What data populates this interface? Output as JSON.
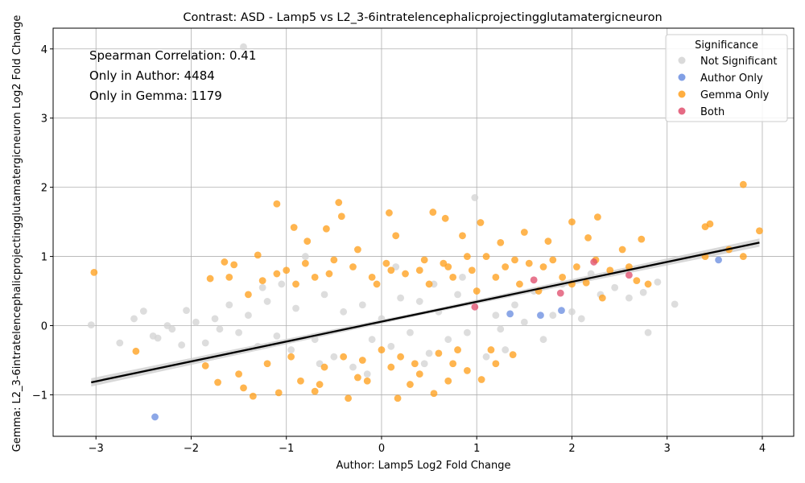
{
  "chart_data": {
    "type": "scatter",
    "title": "Contrast: ASD - Lamp5 vs L2_3-6intratelencephalicprojectingglutamatergicneuron",
    "xlabel": "Author: Lamp5 Log2 Fold Change",
    "ylabel": "Gemma: L2_3-6intratelencephalicprojectingglutamatergicneuron Log2 Fold Change",
    "xlim": [
      -3.45,
      4.33
    ],
    "ylim": [
      -1.6,
      4.3
    ],
    "x_ticks": [
      -3,
      -2,
      -1,
      0,
      1,
      2,
      3,
      4
    ],
    "y_ticks": [
      -1,
      0,
      1,
      2,
      3,
      4
    ],
    "x_tick_labels": [
      "−3",
      "−2",
      "−1",
      "0",
      "1",
      "2",
      "3",
      "4"
    ],
    "y_tick_labels": [
      "−1",
      "0",
      "1",
      "2",
      "3",
      "4"
    ],
    "grid": true,
    "legend": {
      "title": "Significance",
      "placement": "top-right",
      "entries": [
        "Not Significant",
        "Author Only",
        "Gemma Only",
        "Both"
      ]
    },
    "annotations": [
      "Spearman Correlation: 0.41",
      "Only in Author: 4484",
      "Only in Gemma: 1179"
    ],
    "colors": {
      "not_significant": "#d3d3d3",
      "author_only": "#6b8ee0",
      "gemma_only": "#ffa01e",
      "both": "#e0506e",
      "fit_line": "#000000",
      "fit_band": "#c8c8c8"
    },
    "fit_line": {
      "x": [
        -3.05,
        3.97
      ],
      "y": [
        -0.82,
        1.2
      ]
    },
    "series": [
      {
        "name": "Not Significant",
        "points": [
          [
            -3.05,
            0.01
          ],
          [
            -2.75,
            -0.25
          ],
          [
            -2.6,
            0.1
          ],
          [
            -2.5,
            0.21
          ],
          [
            -2.35,
            -0.18
          ],
          [
            -2.2,
            -0.05
          ],
          [
            -2.1,
            -0.28
          ],
          [
            -2.05,
            0.22
          ],
          [
            -1.95,
            0.05
          ],
          [
            -1.85,
            -0.25
          ],
          [
            -1.75,
            0.1
          ],
          [
            -1.6,
            0.3
          ],
          [
            -1.5,
            -0.1
          ],
          [
            -1.45,
            4.03
          ],
          [
            -1.4,
            0.15
          ],
          [
            -1.3,
            -0.3
          ],
          [
            -1.2,
            0.35
          ],
          [
            -1.1,
            -0.15
          ],
          [
            -1.05,
            0.6
          ],
          [
            -0.95,
            -0.35
          ],
          [
            -0.9,
            0.25
          ],
          [
            -0.8,
            1.0
          ],
          [
            -0.7,
            -0.2
          ],
          [
            -0.6,
            0.45
          ],
          [
            -0.5,
            -0.45
          ],
          [
            -0.4,
            0.2
          ],
          [
            -0.3,
            -0.6
          ],
          [
            -0.2,
            0.3
          ],
          [
            -0.1,
            -0.2
          ],
          [
            0.0,
            0.1
          ],
          [
            0.1,
            -0.3
          ],
          [
            0.2,
            0.4
          ],
          [
            0.3,
            -0.1
          ],
          [
            0.4,
            0.35
          ],
          [
            0.5,
            -0.4
          ],
          [
            0.6,
            0.2
          ],
          [
            0.7,
            -0.2
          ],
          [
            0.8,
            0.45
          ],
          [
            0.9,
            -0.1
          ],
          [
            0.98,
            1.85
          ],
          [
            1.1,
            -0.45
          ],
          [
            1.2,
            0.15
          ],
          [
            1.3,
            -0.35
          ],
          [
            1.4,
            0.3
          ],
          [
            1.5,
            0.05
          ],
          [
            1.6,
            0.5
          ],
          [
            1.7,
            -0.2
          ],
          [
            1.8,
            0.15
          ],
          [
            1.9,
            0.6
          ],
          [
            2.0,
            0.2
          ],
          [
            2.1,
            0.1
          ],
          [
            2.2,
            0.75
          ],
          [
            2.3,
            0.45
          ],
          [
            2.45,
            0.55
          ],
          [
            2.6,
            0.4
          ],
          [
            2.75,
            0.48
          ],
          [
            2.9,
            0.63
          ],
          [
            3.08,
            0.31
          ],
          [
            2.8,
            -0.1
          ],
          [
            -2.4,
            -0.15
          ],
          [
            -2.25,
            0.0
          ],
          [
            -1.7,
            -0.05
          ],
          [
            0.45,
            -0.55
          ],
          [
            0.15,
            0.85
          ],
          [
            -0.15,
            -0.7
          ],
          [
            0.55,
            0.6
          ],
          [
            -0.65,
            -0.55
          ],
          [
            0.85,
            0.7
          ],
          [
            1.25,
            -0.05
          ],
          [
            -1.25,
            0.55
          ]
        ]
      },
      {
        "name": "Author Only",
        "points": [
          [
            -2.38,
            -1.32
          ],
          [
            3.54,
            0.95
          ],
          [
            1.35,
            0.17
          ],
          [
            1.67,
            0.15
          ],
          [
            1.89,
            0.22
          ]
        ]
      },
      {
        "name": "Gemma Only",
        "points": [
          [
            -3.02,
            0.77
          ],
          [
            -2.58,
            -0.37
          ],
          [
            -1.85,
            -0.58
          ],
          [
            -1.72,
            -0.82
          ],
          [
            -1.65,
            0.92
          ],
          [
            -1.55,
            0.88
          ],
          [
            -1.45,
            -0.9
          ],
          [
            -1.35,
            -1.02
          ],
          [
            -1.3,
            1.02
          ],
          [
            -1.1,
            1.76
          ],
          [
            -1.08,
            -0.97
          ],
          [
            -0.92,
            1.42
          ],
          [
            -0.85,
            -0.8
          ],
          [
            -0.78,
            1.22
          ],
          [
            -0.7,
            -0.95
          ],
          [
            -0.58,
            1.4
          ],
          [
            -0.45,
            1.78
          ],
          [
            -0.42,
            1.58
          ],
          [
            -0.35,
            -1.05
          ],
          [
            -0.25,
            1.1
          ],
          [
            -0.15,
            -0.8
          ],
          [
            0.08,
            1.63
          ],
          [
            0.15,
            1.3
          ],
          [
            0.17,
            -1.05
          ],
          [
            0.3,
            -0.85
          ],
          [
            0.54,
            1.64
          ],
          [
            0.55,
            -0.98
          ],
          [
            0.67,
            1.55
          ],
          [
            0.7,
            -0.8
          ],
          [
            0.85,
            1.3
          ],
          [
            0.9,
            -0.65
          ],
          [
            1.04,
            1.49
          ],
          [
            1.05,
            -0.78
          ],
          [
            1.2,
            -0.55
          ],
          [
            1.25,
            1.2
          ],
          [
            1.38,
            -0.42
          ],
          [
            1.5,
            1.35
          ],
          [
            1.75,
            1.22
          ],
          [
            2.0,
            1.5
          ],
          [
            2.17,
            1.27
          ],
          [
            2.27,
            1.57
          ],
          [
            2.32,
            0.4
          ],
          [
            2.53,
            1.1
          ],
          [
            2.68,
            0.65
          ],
          [
            2.73,
            1.25
          ],
          [
            2.8,
            0.6
          ],
          [
            3.4,
            1.43
          ],
          [
            3.45,
            1.47
          ],
          [
            3.4,
            1.0
          ],
          [
            3.8,
            2.04
          ],
          [
            3.8,
            1.0
          ],
          [
            3.65,
            1.1
          ],
          [
            3.97,
            1.37
          ],
          [
            -1.8,
            0.68
          ],
          [
            -1.6,
            0.7
          ],
          [
            -1.4,
            0.45
          ],
          [
            -1.2,
            -0.55
          ],
          [
            -1.0,
            0.8
          ],
          [
            -0.95,
            -0.45
          ],
          [
            -0.8,
            0.9
          ],
          [
            -0.6,
            -0.6
          ],
          [
            -0.55,
            0.75
          ],
          [
            -0.4,
            -0.45
          ],
          [
            -0.3,
            0.85
          ],
          [
            -0.2,
            -0.5
          ],
          [
            -0.1,
            0.7
          ],
          [
            0.0,
            -0.35
          ],
          [
            0.05,
            0.9
          ],
          [
            0.2,
            -0.45
          ],
          [
            0.25,
            0.75
          ],
          [
            0.35,
            -0.55
          ],
          [
            0.4,
            0.8
          ],
          [
            0.5,
            0.6
          ],
          [
            0.6,
            -0.4
          ],
          [
            0.65,
            0.9
          ],
          [
            0.75,
            0.7
          ],
          [
            0.8,
            -0.35
          ],
          [
            0.95,
            0.8
          ],
          [
            1.0,
            0.5
          ],
          [
            1.1,
            1.0
          ],
          [
            1.15,
            -0.35
          ],
          [
            1.3,
            0.85
          ],
          [
            1.45,
            0.6
          ],
          [
            1.55,
            0.9
          ],
          [
            1.65,
            0.5
          ],
          [
            1.8,
            0.95
          ],
          [
            1.9,
            0.7
          ],
          [
            2.05,
            0.85
          ],
          [
            2.15,
            0.62
          ],
          [
            2.25,
            0.95
          ],
          [
            2.4,
            0.8
          ],
          [
            2.6,
            0.85
          ],
          [
            2.0,
            0.6
          ],
          [
            1.7,
            0.85
          ],
          [
            1.4,
            0.95
          ],
          [
            1.2,
            0.7
          ],
          [
            0.9,
            1.0
          ],
          [
            0.7,
            0.85
          ],
          [
            0.45,
            0.95
          ],
          [
            0.1,
            0.8
          ],
          [
            -0.05,
            0.6
          ],
          [
            -0.5,
            0.95
          ],
          [
            -0.7,
            0.7
          ],
          [
            -0.9,
            0.6
          ],
          [
            -1.1,
            0.75
          ],
          [
            -1.25,
            0.65
          ],
          [
            -1.5,
            -0.7
          ],
          [
            -0.65,
            -0.85
          ],
          [
            -0.25,
            -0.75
          ],
          [
            0.1,
            -0.6
          ],
          [
            0.4,
            -0.7
          ],
          [
            0.75,
            -0.55
          ]
        ]
      },
      {
        "name": "Both",
        "points": [
          [
            1.6,
            0.66
          ],
          [
            1.88,
            0.47
          ],
          [
            2.23,
            0.92
          ],
          [
            2.6,
            0.73
          ],
          [
            0.98,
            0.27
          ]
        ]
      }
    ]
  }
}
